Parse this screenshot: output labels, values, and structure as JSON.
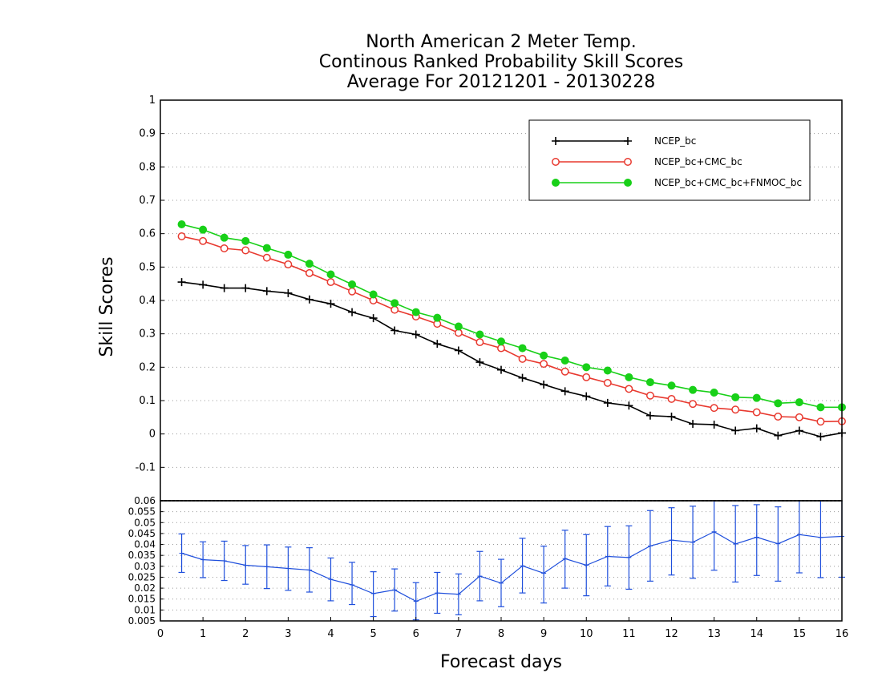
{
  "chart_data": {
    "type": "line",
    "title": [
      "North American 2 Meter Temp.",
      "Continous Ranked Probability Skill Scores",
      "Average For 20121201 - 20130228"
    ],
    "xlabel": "Forecast days",
    "ylabel": "Skill Scores",
    "xlim": [
      0,
      16
    ],
    "ylim": [
      -0.2,
      1
    ],
    "x_ticks": [
      "0",
      "1",
      "2",
      "3",
      "4",
      "5",
      "6",
      "7",
      "8",
      "9",
      "10",
      "11",
      "12",
      "13",
      "14",
      "15",
      "16"
    ],
    "y_ticks": [
      "-0.1",
      "0",
      "0.1",
      "0.2",
      "0.3",
      "0.4",
      "0.5",
      "0.6",
      "0.7",
      "0.8",
      "0.9",
      "1"
    ],
    "grid": true,
    "legend_position": "top-right",
    "x": [
      0.5,
      1,
      1.5,
      2,
      2.5,
      3,
      3.5,
      4,
      4.5,
      5,
      5.5,
      6,
      6.5,
      7,
      7.5,
      8,
      8.5,
      9,
      9.5,
      10,
      10.5,
      11,
      11.5,
      12,
      12.5,
      13,
      13.5,
      14,
      14.5,
      15,
      15.5,
      16
    ],
    "series": [
      {
        "name": "NCEP_bc",
        "color": "#000000",
        "marker": "plus",
        "values": [
          0.455,
          0.447,
          0.437,
          0.437,
          0.428,
          0.422,
          0.403,
          0.39,
          0.365,
          0.347,
          0.31,
          0.298,
          0.27,
          0.25,
          0.215,
          0.192,
          0.168,
          0.148,
          0.128,
          0.113,
          0.093,
          0.085,
          0.055,
          0.052,
          0.03,
          0.028,
          0.01,
          0.017,
          -0.005,
          0.01,
          -0.008,
          0.003
        ]
      },
      {
        "name": "NCEP_bc+CMC_bc",
        "color": "#e8392f",
        "marker": "open-circle",
        "values": [
          0.592,
          0.578,
          0.556,
          0.55,
          0.528,
          0.508,
          0.482,
          0.455,
          0.427,
          0.4,
          0.372,
          0.352,
          0.33,
          0.303,
          0.275,
          0.257,
          0.225,
          0.21,
          0.187,
          0.17,
          0.153,
          0.135,
          0.115,
          0.105,
          0.09,
          0.078,
          0.073,
          0.065,
          0.052,
          0.05,
          0.037,
          0.038
        ]
      },
      {
        "name": "NCEP_bc+CMC_bc+FNMOC_bc",
        "color": "#18d018",
        "marker": "filled-circle",
        "values": [
          0.628,
          0.612,
          0.588,
          0.578,
          0.557,
          0.537,
          0.51,
          0.478,
          0.448,
          0.418,
          0.392,
          0.365,
          0.348,
          0.322,
          0.298,
          0.277,
          0.257,
          0.235,
          0.22,
          0.2,
          0.19,
          0.17,
          0.155,
          0.145,
          0.132,
          0.124,
          0.11,
          0.108,
          0.092,
          0.095,
          0.08,
          0.08
        ]
      }
    ],
    "subplot": {
      "type": "errorbar",
      "series_color": "#1f4fdc",
      "ylim": [
        0.005,
        0.06
      ],
      "y_ticks": [
        "0.005",
        "0.01",
        "0.015",
        "0.02",
        "0.025",
        "0.03",
        "0.035",
        "0.04",
        "0.045",
        "0.05",
        "0.055",
        "0.06"
      ],
      "x": [
        0.5,
        1,
        1.5,
        2,
        2.5,
        3,
        3.5,
        4,
        4.5,
        5,
        5.5,
        6,
        6.5,
        7,
        7.5,
        8,
        8.5,
        9,
        9.5,
        10,
        10.5,
        11,
        11.5,
        12,
        12.5,
        13,
        13.5,
        14,
        14.5,
        15,
        15.5,
        16
      ],
      "values": [
        0.036,
        0.033,
        0.0325,
        0.0305,
        0.0298,
        0.029,
        0.0283,
        0.024,
        0.0215,
        0.0175,
        0.0192,
        0.014,
        0.0178,
        0.0172,
        0.0255,
        0.0223,
        0.0302,
        0.0268,
        0.0335,
        0.0305,
        0.0345,
        0.034,
        0.0393,
        0.042,
        0.041,
        0.0458,
        0.0402,
        0.0433,
        0.0403,
        0.0445,
        0.0432,
        0.0437
      ],
      "lower": [
        0.0272,
        0.0248,
        0.0235,
        0.0218,
        0.0198,
        0.019,
        0.0182,
        0.0142,
        0.0125,
        0.007,
        0.0095,
        0.0055,
        0.0085,
        0.0078,
        0.0142,
        0.0115,
        0.0178,
        0.0132,
        0.02,
        0.0165,
        0.021,
        0.0195,
        0.0232,
        0.026,
        0.0245,
        0.0282,
        0.0228,
        0.0258,
        0.0232,
        0.027,
        0.0248,
        0.025
      ],
      "upper": [
        0.0448,
        0.0412,
        0.0415,
        0.0395,
        0.0398,
        0.0388,
        0.0385,
        0.0338,
        0.0318,
        0.0275,
        0.0288,
        0.0225,
        0.0272,
        0.0265,
        0.0368,
        0.0332,
        0.0428,
        0.0392,
        0.0465,
        0.0445,
        0.0482,
        0.0485,
        0.0555,
        0.0568,
        0.0575,
        0.0605,
        0.0578,
        0.0582,
        0.0572,
        0.0605,
        0.0605,
        0.0605
      ]
    }
  }
}
